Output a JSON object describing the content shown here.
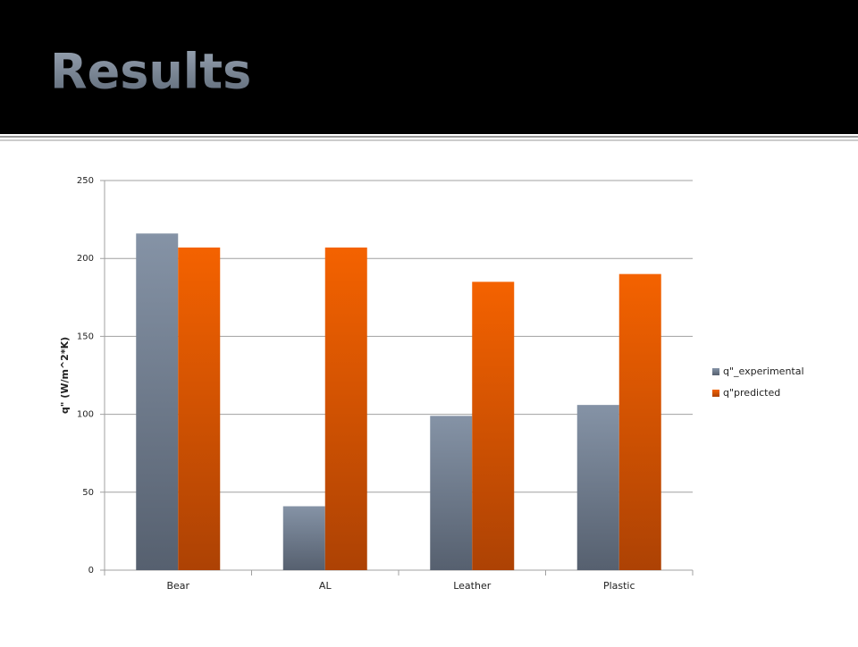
{
  "chart_data": {
    "type": "bar",
    "title": "Results",
    "y_label": "q\" (W/m^2*K)",
    "categories": [
      "Bear",
      "AL",
      "Leather",
      "Plastic"
    ],
    "series": [
      {
        "name": "q\"_experimental",
        "color": "#7a8799",
        "values": [
          216,
          41,
          99,
          106
        ]
      },
      {
        "name": "q\"predicted",
        "color": "#e85c08",
        "values": [
          207,
          207,
          185,
          190
        ]
      }
    ],
    "ylim": [
      0,
      250
    ],
    "yticks": [
      0,
      50,
      100,
      150,
      200,
      250
    ],
    "grid": true,
    "legend": "right"
  }
}
